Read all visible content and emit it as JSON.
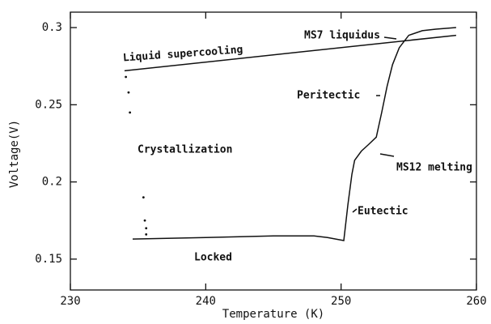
{
  "chart_data": {
    "type": "line",
    "x_label": "Temperature (K)",
    "y_label": "Voltage(V)",
    "xlim": [
      230,
      260
    ],
    "xticks": [
      230,
      240,
      250,
      260
    ],
    "ylim": [
      0.13,
      0.31
    ],
    "yticks": [
      0.15,
      0.2,
      0.25,
      0.3
    ],
    "series": [
      {
        "color": "#111111",
        "style": "solid",
        "x": [
          234,
          258.5
        ],
        "values": [
          0.272,
          0.295
        ]
      },
      {
        "color": "#111111",
        "style": "solid",
        "x": [
          234.6,
          240,
          245,
          248,
          249,
          250.2,
          250.5,
          250.8,
          251,
          251.5,
          252,
          252.6,
          253,
          253.4,
          253.8,
          254.3,
          255,
          256,
          257,
          258.5
        ],
        "values": [
          0.163,
          0.164,
          0.165,
          0.165,
          0.164,
          0.162,
          0.185,
          0.205,
          0.214,
          0.22,
          0.224,
          0.229,
          0.245,
          0.262,
          0.276,
          0.287,
          0.295,
          0.298,
          0.299,
          0.3
        ]
      },
      {
        "color": "#111111",
        "style": "dots",
        "x": [
          234.1,
          234.3,
          234.4,
          235.4,
          235.5,
          235.6,
          235.6
        ],
        "values": [
          0.268,
          0.258,
          0.245,
          0.19,
          0.175,
          0.17,
          0.166
        ]
      }
    ],
    "annotations": [
      "Liquid supercooling",
      "MS7 liquidus",
      "Peritectic",
      "Crystallization",
      "MS12 melting",
      "Eutectic",
      "Locked"
    ]
  }
}
